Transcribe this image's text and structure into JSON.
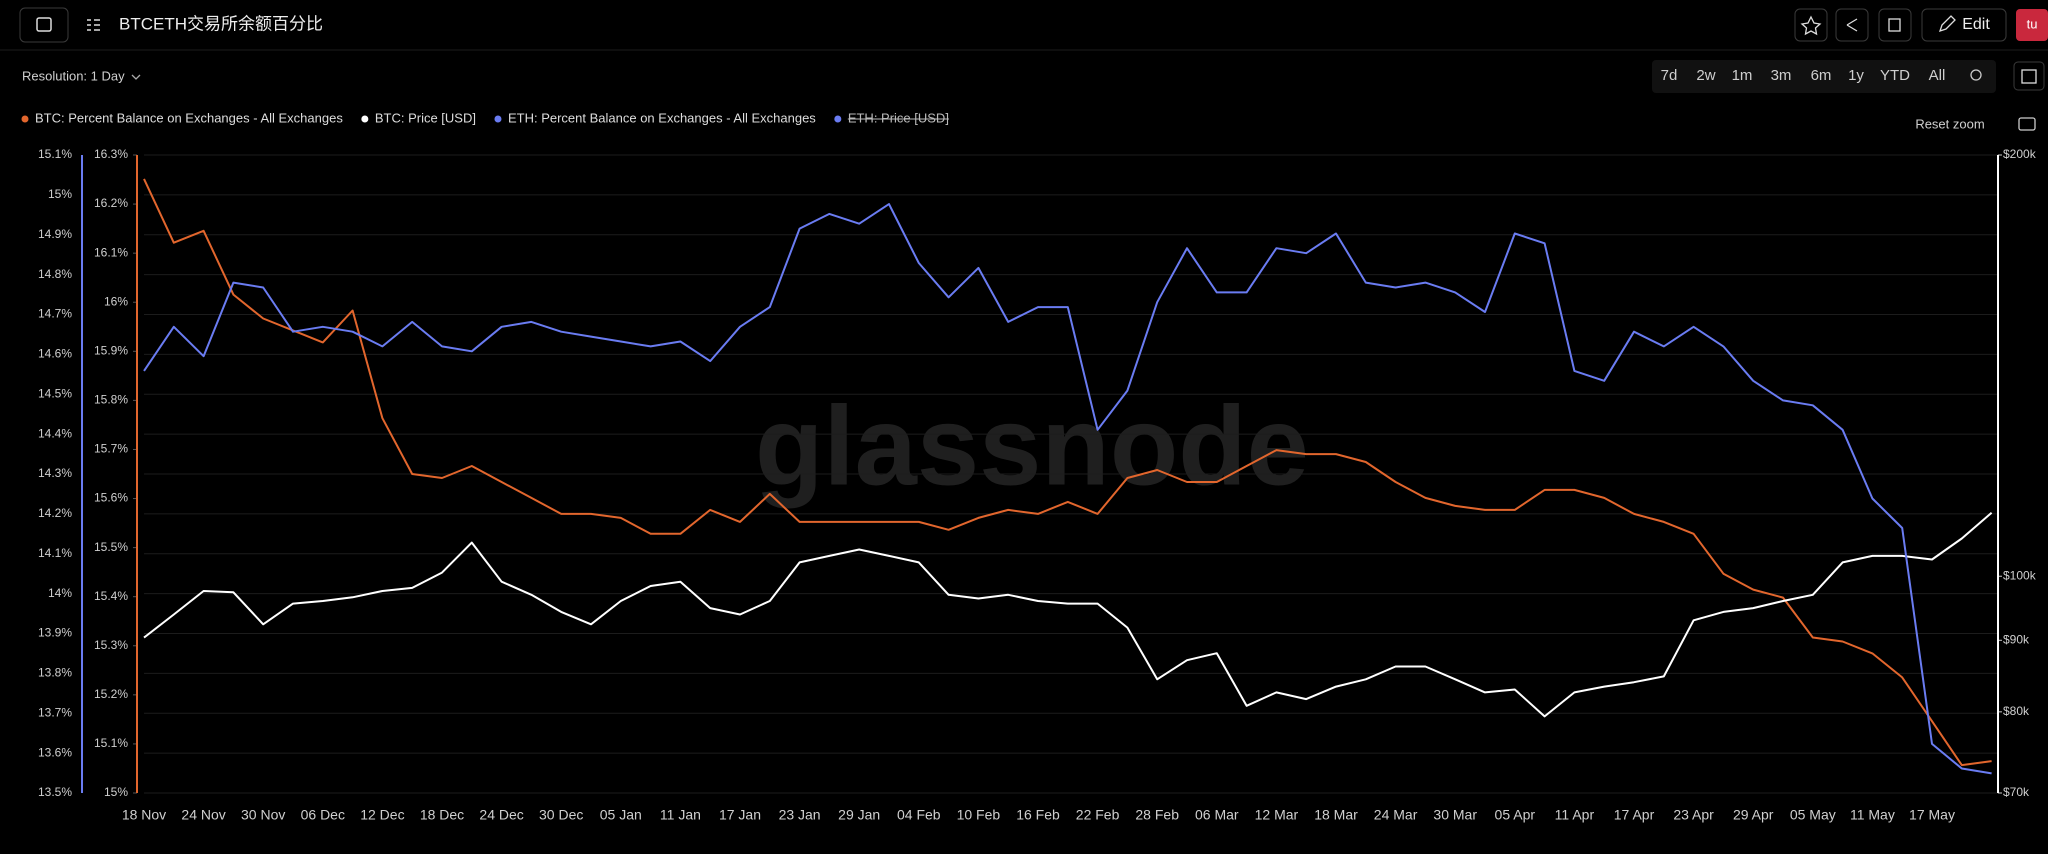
{
  "header": {
    "title": "BTCETH交易所余额百分比",
    "edit": "Edit",
    "avatar": "tu"
  },
  "toolbar": {
    "resolution": "Resolution: 1 Day",
    "ranges": [
      "7d",
      "2w",
      "1m",
      "3m",
      "6m",
      "1y",
      "YTD",
      "All"
    ],
    "reset_zoom": "Reset zoom"
  },
  "chart_data": {
    "type": "line",
    "watermark": "glassnode",
    "categories": [
      "18 Nov",
      null,
      "24 Nov",
      null,
      "30 Nov",
      null,
      "06 Dec",
      null,
      "12 Dec",
      null,
      "18 Dec",
      null,
      "24 Dec",
      null,
      "30 Dec",
      null,
      "05 Jan",
      null,
      "11 Jan",
      null,
      "17 Jan",
      null,
      "23 Jan",
      null,
      "29 Jan",
      null,
      "04 Feb",
      null,
      "10 Feb",
      null,
      "16 Feb",
      null,
      "22 Feb",
      null,
      "28 Feb",
      null,
      "06 Mar",
      null,
      "12 Mar",
      null,
      "18 Mar",
      null,
      "24 Mar",
      null,
      "30 Mar",
      null,
      "05 Apr",
      null,
      "11 Apr",
      null,
      "17 Apr",
      null,
      "23 Apr",
      null,
      "29 Apr",
      null,
      "05 May",
      null,
      "11 May",
      null,
      "17 May",
      null,
      null
    ],
    "series": [
      {
        "name": "BTC: Percent Balance on Exchanges - All Exchanges",
        "color": "#e2662d",
        "axis": "y",
        "values": [
          15.04,
          14.88,
          14.91,
          14.75,
          14.69,
          14.66,
          14.63,
          14.71,
          14.44,
          14.3,
          14.29,
          14.32,
          14.28,
          14.24,
          14.2,
          14.2,
          14.19,
          14.15,
          14.15,
          14.21,
          14.18,
          14.25,
          14.18,
          14.18,
          14.18,
          14.18,
          14.18,
          14.16,
          14.19,
          14.21,
          14.2,
          14.23,
          14.2,
          14.29,
          14.31,
          14.28,
          14.28,
          14.32,
          14.36,
          14.35,
          14.35,
          14.33,
          14.28,
          14.24,
          14.22,
          14.21,
          14.21,
          14.26,
          14.26,
          14.24,
          14.2,
          14.18,
          14.15,
          14.05,
          14.01,
          13.99,
          13.89,
          13.88,
          13.85,
          13.79,
          13.68,
          13.57,
          13.58
        ]
      },
      {
        "name": "BTC: Price [USD]",
        "color": "#ffffff",
        "axis": "y2",
        "values": [
          90400,
          93900,
          97600,
          97400,
          92400,
          95600,
          96000,
          96600,
          97600,
          98100,
          100600,
          105700,
          99100,
          97000,
          94300,
          92400,
          96000,
          98400,
          99100,
          94900,
          93900,
          96000,
          102300,
          103400,
          104500,
          103400,
          102300,
          97000,
          96400,
          97000,
          96000,
          95600,
          95600,
          91900,
          84400,
          87100,
          88100,
          80800,
          82600,
          81700,
          83400,
          84400,
          86200,
          86200,
          84400,
          82600,
          83000,
          79400,
          82600,
          83400,
          84000,
          84800,
          93000,
          94300,
          94900,
          96000,
          97000,
          102300,
          103400,
          103400,
          102800,
          106400,
          111000
        ]
      },
      {
        "name": "ETH: Percent Balance on Exchanges - All Exchanges",
        "color": "#6a7cf2",
        "axis": "y3",
        "values": [
          15.86,
          15.95,
          15.89,
          16.04,
          16.03,
          15.94,
          15.95,
          15.94,
          15.91,
          15.96,
          15.91,
          15.9,
          15.95,
          15.96,
          15.94,
          15.93,
          15.92,
          15.91,
          15.92,
          15.88,
          15.95,
          15.99,
          16.15,
          16.18,
          16.16,
          16.2,
          16.08,
          16.01,
          16.07,
          15.96,
          15.99,
          15.99,
          15.74,
          15.82,
          16.0,
          16.11,
          16.02,
          16.02,
          16.11,
          16.1,
          16.14,
          16.04,
          16.03,
          16.04,
          16.02,
          15.98,
          16.14,
          16.12,
          15.86,
          15.84,
          15.94,
          15.91,
          15.95,
          15.91,
          15.84,
          15.8,
          15.79,
          15.74,
          15.6,
          15.54,
          15.1,
          15.05,
          15.04
        ]
      },
      {
        "name": "ETH: Price [USD]",
        "color": "#6a7cf2",
        "axis": "y4",
        "hidden": true
      }
    ],
    "ylim": [
      13.5,
      15.1
    ],
    "yticks": [
      {
        "value": 13.5,
        "label": "13.5%"
      },
      {
        "value": 13.6,
        "label": "13.6%"
      },
      {
        "value": 13.7,
        "label": "13.7%"
      },
      {
        "value": 13.8,
        "label": "13.8%"
      },
      {
        "value": 13.9,
        "label": "13.9%"
      },
      {
        "value": 14,
        "label": "14%"
      },
      {
        "value": 14.1,
        "label": "14.1%"
      },
      {
        "value": 14.2,
        "label": "14.2%"
      },
      {
        "value": 14.3,
        "label": "14.3%"
      },
      {
        "value": 14.4,
        "label": "14.4%"
      },
      {
        "value": 14.5,
        "label": "14.5%"
      },
      {
        "value": 14.6,
        "label": "14.6%"
      },
      {
        "value": 14.7,
        "label": "14.7%"
      },
      {
        "value": 14.8,
        "label": "14.8%"
      },
      {
        "value": 14.9,
        "label": "14.9%"
      },
      {
        "value": 15,
        "label": "15%"
      },
      {
        "value": 15.1,
        "label": "15.1%"
      }
    ],
    "y3lim": [
      15,
      16.3
    ],
    "y3ticks": [
      {
        "value": 15,
        "label": "15%"
      },
      {
        "value": 15.1,
        "label": "15.1%"
      },
      {
        "value": 15.2,
        "label": "15.2%"
      },
      {
        "value": 15.3,
        "label": "15.3%"
      },
      {
        "value": 15.4,
        "label": "15.4%"
      },
      {
        "value": 15.5,
        "label": "15.5%"
      },
      {
        "value": 15.6,
        "label": "15.6%"
      },
      {
        "value": 15.7,
        "label": "15.7%"
      },
      {
        "value": 15.8,
        "label": "15.8%"
      },
      {
        "value": 15.9,
        "label": "15.9%"
      },
      {
        "value": 16,
        "label": "16%"
      },
      {
        "value": 16.1,
        "label": "16.1%"
      },
      {
        "value": 16.2,
        "label": "16.2%"
      },
      {
        "value": 16.3,
        "label": "16.3%"
      }
    ],
    "y2lim": [
      70000,
      200000
    ],
    "y2log": true,
    "y2ticks": [
      {
        "value": 70000,
        "label": "$70k"
      },
      {
        "value": 80000,
        "label": "$80k"
      },
      {
        "value": 90000,
        "label": "$90k"
      },
      {
        "value": 100000,
        "label": "$100k"
      },
      {
        "value": 200000,
        "label": "$200k"
      }
    ],
    "grid": true
  }
}
